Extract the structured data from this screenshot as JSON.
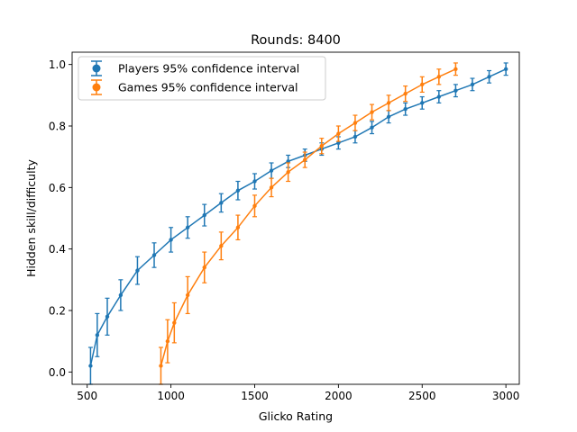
{
  "chart_data": {
    "type": "scatter",
    "title": "Rounds: 8400",
    "xlabel": "Glicko Rating",
    "ylabel": "Hidden skill/difficulty",
    "xlim": [
      410,
      3080
    ],
    "ylim": [
      -0.04,
      1.04
    ],
    "xticks": [
      500,
      1000,
      1500,
      2000,
      2500,
      3000
    ],
    "yticks": [
      0.0,
      0.2,
      0.4,
      0.6,
      0.8,
      1.0
    ],
    "xtick_labels": [
      "500",
      "1000",
      "1500",
      "2000",
      "2500",
      "3000"
    ],
    "ytick_labels": [
      "0.0",
      "0.2",
      "0.4",
      "0.6",
      "0.8",
      "1.0"
    ],
    "grid": false,
    "legend_position": "top-left",
    "series": [
      {
        "name": "Players 95% confidence interval",
        "color": "#1f77b4",
        "x": [
          520,
          560,
          620,
          700,
          800,
          900,
          1000,
          1100,
          1200,
          1300,
          1400,
          1500,
          1600,
          1700,
          1800,
          1900,
          2000,
          2100,
          2200,
          2300,
          2400,
          2500,
          2600,
          2700,
          2800,
          2900,
          3000
        ],
        "y": [
          0.02,
          0.12,
          0.18,
          0.25,
          0.33,
          0.38,
          0.43,
          0.47,
          0.51,
          0.55,
          0.59,
          0.62,
          0.655,
          0.685,
          0.705,
          0.725,
          0.745,
          0.765,
          0.795,
          0.83,
          0.855,
          0.875,
          0.895,
          0.915,
          0.935,
          0.96,
          0.985
        ],
        "err": [
          0.06,
          0.07,
          0.06,
          0.05,
          0.045,
          0.04,
          0.04,
          0.035,
          0.035,
          0.03,
          0.03,
          0.025,
          0.025,
          0.02,
          0.02,
          0.02,
          0.02,
          0.02,
          0.02,
          0.02,
          0.02,
          0.02,
          0.02,
          0.02,
          0.02,
          0.02,
          0.02
        ]
      },
      {
        "name": "Games 95% confidence interval",
        "color": "#ff7f0e",
        "x": [
          940,
          980,
          1020,
          1100,
          1200,
          1300,
          1400,
          1500,
          1600,
          1700,
          1800,
          1900,
          2000,
          2100,
          2200,
          2300,
          2400,
          2500,
          2600,
          2700
        ],
        "y": [
          0.02,
          0.1,
          0.16,
          0.25,
          0.34,
          0.41,
          0.47,
          0.54,
          0.6,
          0.65,
          0.69,
          0.735,
          0.775,
          0.81,
          0.845,
          0.875,
          0.905,
          0.935,
          0.96,
          0.985
        ],
        "err": [
          0.06,
          0.07,
          0.065,
          0.06,
          0.05,
          0.045,
          0.04,
          0.035,
          0.03,
          0.03,
          0.025,
          0.025,
          0.025,
          0.025,
          0.025,
          0.025,
          0.025,
          0.025,
          0.025,
          0.02
        ]
      }
    ]
  }
}
